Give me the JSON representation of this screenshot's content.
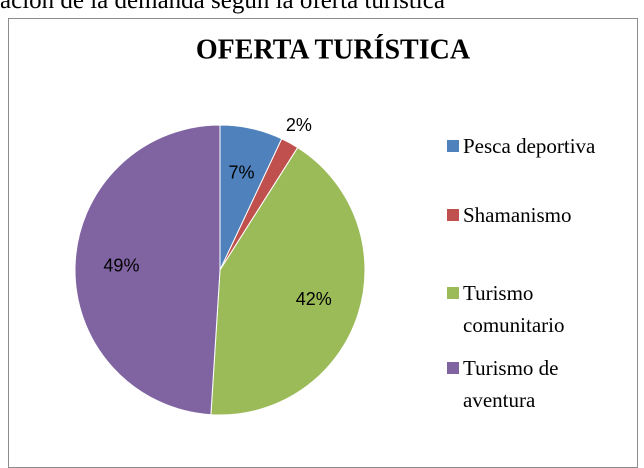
{
  "heading": "ación de la demanda según la oferta turística",
  "chart_data": {
    "type": "pie",
    "title": "OFERTA TURÍSTICA",
    "categories": [
      "Pesca deportiva",
      "Shamanismo",
      "Turismo comunitario",
      "Turismo de aventura"
    ],
    "values": [
      7,
      2,
      42,
      49
    ],
    "value_labels": [
      "7%",
      "2%",
      "42%",
      "49%"
    ],
    "colors": [
      "#4f81bd",
      "#c0504d",
      "#9bbb59",
      "#8064a2"
    ],
    "legend": "right"
  }
}
